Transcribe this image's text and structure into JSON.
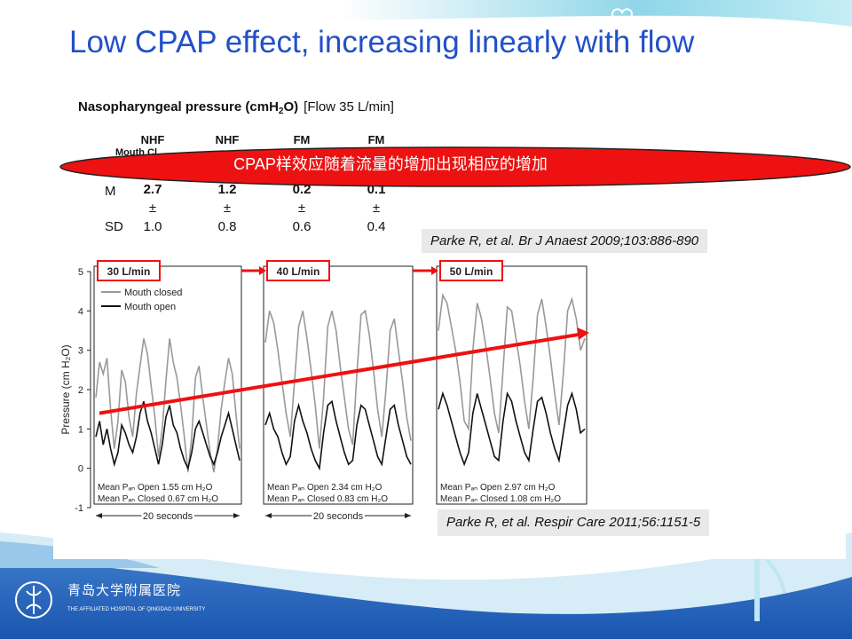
{
  "slide": {
    "title": "Low CPAP effect, increasing linearly with flow",
    "hospital_name": "青岛大学附属医院",
    "hospital_name_en": "THE AFFILIATED HOSPITAL OF QINGDAO UNIVERSITY"
  },
  "table": {
    "title": "Nasopharyngeal pressure (cmH",
    "title_sub": "2",
    "title_end": "O)",
    "flow": "[Flow 35 L/min]",
    "columns": [
      "NHF",
      "NHF",
      "FM",
      "FM"
    ],
    "row2_partial": "Mouth Cl",
    "m_label": "M",
    "m_values": [
      "2.7",
      "1.2",
      "0.2",
      "0.1"
    ],
    "pm": "±",
    "sd_label": "SD",
    "sd_values": [
      "1.0",
      "0.8",
      "0.6",
      "0.4"
    ]
  },
  "callout": {
    "text": "CPAP样效应随着流量的增加出现相应的增加",
    "color": "#ee1111"
  },
  "references": {
    "ref1": "Parke R, et al. Br J Anaest 2009;103:886-890",
    "ref2": "Parke R, et al. Respir Care 2011;56:1151-5"
  },
  "chart_data": {
    "type": "line",
    "ylabel": "Pressure (cm H₂O)",
    "ylim": [
      -1,
      5
    ],
    "y_ticks": [
      "-1",
      "0",
      "1",
      "2",
      "3",
      "4",
      "5"
    ],
    "legend": [
      "Mouth closed",
      "Mouth open"
    ],
    "legend_placement": "top-left",
    "time_label": "20 seconds",
    "panels": [
      {
        "flow_label": "30 L/min",
        "mean_open": "Mean Pₐₙ Open 1.55 cm H₂O",
        "mean_closed": "Mean Pₐₙ Closed 0.67 cm H₂O",
        "series": [
          {
            "name": "Mouth closed",
            "color": "#999999",
            "values": [
              1.8,
              2.7,
              2.4,
              2.8,
              1.5,
              0.5,
              1.2,
              2.5,
              2.2,
              1.3,
              0.8,
              1.9,
              2.6,
              3.3,
              2.9,
              2.1,
              1.3,
              0.3,
              1.0,
              2.2,
              3.3,
              2.7,
              2.3,
              1.6,
              0.8,
              -0.1,
              0.8,
              2.3,
              2.6,
              1.8,
              1.1,
              0.4,
              -0.1,
              0.5,
              1.5,
              2.2,
              2.8,
              2.4,
              1.4,
              0.5
            ]
          },
          {
            "name": "Mouth open",
            "color": "#111111",
            "values": [
              0.8,
              1.2,
              0.6,
              1.0,
              0.5,
              0.1,
              0.4,
              1.1,
              0.9,
              0.6,
              0.4,
              0.8,
              1.4,
              1.7,
              1.2,
              0.9,
              0.5,
              0.1,
              0.6,
              1.3,
              1.6,
              1.1,
              0.9,
              0.5,
              0.2,
              0.0,
              0.4,
              1.0,
              1.2,
              0.9,
              0.6,
              0.3,
              0.1,
              0.4,
              0.8,
              1.1,
              1.4,
              1.0,
              0.6,
              0.2
            ]
          }
        ]
      },
      {
        "flow_label": "40 L/min",
        "mean_open": "Mean Pₐₙ Open 2.34 cm H₂O",
        "mean_closed": "Mean Pₐₙ Closed 0.83 cm H₂O",
        "series": [
          {
            "name": "Mouth closed",
            "color": "#999999",
            "values": [
              3.2,
              4.0,
              3.7,
              3.0,
              2.2,
              1.4,
              0.8,
              2.2,
              3.6,
              4.0,
              3.3,
              2.5,
              1.6,
              0.5,
              1.8,
              3.6,
              4.0,
              3.5,
              2.6,
              1.8,
              1.0,
              0.6,
              2.4,
              3.9,
              4.0,
              3.4,
              2.5,
              1.5,
              0.8,
              2.0,
              3.5,
              3.8,
              3.0,
              2.2,
              1.3,
              0.7
            ]
          },
          {
            "name": "Mouth open",
            "color": "#111111",
            "values": [
              1.1,
              1.4,
              1.0,
              0.8,
              0.4,
              0.1,
              0.3,
              1.2,
              1.6,
              1.2,
              0.9,
              0.5,
              0.2,
              0.0,
              0.9,
              1.6,
              1.7,
              1.2,
              0.8,
              0.4,
              0.1,
              0.2,
              1.1,
              1.6,
              1.5,
              1.1,
              0.7,
              0.3,
              0.1,
              0.8,
              1.5,
              1.6,
              1.1,
              0.7,
              0.3,
              0.1
            ]
          }
        ]
      },
      {
        "flow_label": "50 L/min",
        "mean_open": "Mean Pₐₙ Open 2.97 cm H₂O",
        "mean_closed": "Mean Pₐₙ Closed 1.08 cm H₂O",
        "series": [
          {
            "name": "Mouth closed",
            "color": "#999999",
            "values": [
              3.5,
              4.4,
              4.2,
              3.6,
              3.0,
              2.2,
              1.2,
              1.0,
              3.0,
              4.2,
              3.8,
              3.1,
              2.3,
              1.4,
              0.9,
              2.5,
              4.1,
              4.0,
              3.3,
              2.6,
              1.7,
              1.0,
              2.3,
              3.9,
              4.3,
              3.6,
              2.8,
              1.9,
              1.1,
              2.4,
              4.0,
              4.3,
              3.8,
              3.0,
              3.3
            ]
          },
          {
            "name": "Mouth open",
            "color": "#111111",
            "values": [
              1.5,
              1.9,
              1.6,
              1.2,
              0.8,
              0.4,
              0.1,
              0.4,
              1.4,
              1.9,
              1.5,
              1.1,
              0.7,
              0.3,
              0.2,
              1.2,
              1.9,
              1.7,
              1.2,
              0.8,
              0.4,
              0.2,
              1.0,
              1.7,
              1.8,
              1.4,
              0.9,
              0.5,
              0.2,
              0.9,
              1.6,
              1.9,
              1.5,
              0.9,
              1.0
            ]
          }
        ]
      }
    ],
    "trend_arrow": {
      "from_y": 1.4,
      "to_y": 3.4,
      "color": "#ee1111"
    }
  }
}
